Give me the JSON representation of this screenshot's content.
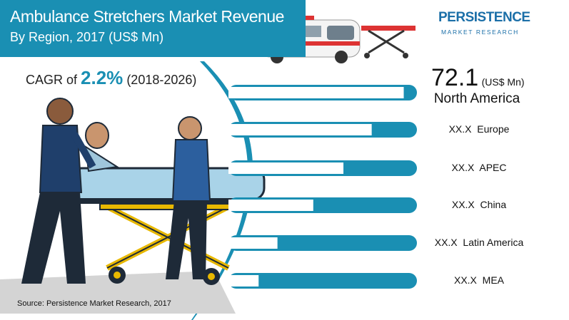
{
  "header": {
    "title_line1": "Ambulance Stretchers Market Revenue",
    "title_line2": "By Region, 2017 (US$ Mn)"
  },
  "logo": {
    "name": "PERSISTENCE",
    "tagline": "MARKET RESEARCH"
  },
  "cagr": {
    "prefix": "CAGR of ",
    "value": "2.2%",
    "period": "(2018-2026)"
  },
  "source": "Source: Persistence Market Research, 2017",
  "highlight": {
    "value": "72.1",
    "unit": "(US$ Mn)",
    "region": "North America"
  },
  "colors": {
    "accent": "#1a8fb3",
    "bar_track": "#1a8fb3",
    "bar_fill": "#ffffff",
    "brand": "#1b6fa8"
  },
  "chart_data": {
    "type": "bar",
    "orientation": "horizontal",
    "categories": [
      "North America",
      "Europe",
      "APEC",
      "China",
      "Latin America",
      "MEA"
    ],
    "values": [
      72.1,
      null,
      null,
      null,
      null,
      null
    ],
    "value_labels": [
      "72.1",
      "XX.X",
      "XX.X",
      "XX.X",
      "XX.X",
      "XX.X"
    ],
    "fill_fraction": [
      0.93,
      0.76,
      0.61,
      0.45,
      0.26,
      0.16
    ]
  },
  "illustration": {
    "icons": [
      "ambulance-icon",
      "stretcher-icon",
      "paramedics-with-patient-icon"
    ]
  }
}
